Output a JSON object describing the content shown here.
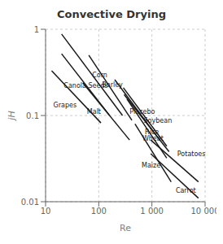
{
  "chart_data": {
    "type": "line",
    "title": "Convective Drying",
    "x_label": "Re",
    "y_label": "jH",
    "log": true,
    "grid": true,
    "color": "#1a1a1a",
    "xlim": [
      10,
      10000
    ],
    "ylim": [
      0.01,
      1
    ],
    "xticks": [
      10,
      100,
      {
        "value": 1000,
        "label": "1 000"
      },
      {
        "value": 10000,
        "label": "10 000"
      }
    ],
    "yticks": [
      0.01,
      0.1,
      1
    ],
    "series": [
      {
        "name": "Corn",
        "x": [
          20,
          280
        ],
        "values": [
          0.88,
          0.1
        ],
        "label_x": 75,
        "label_y": 0.28
      },
      {
        "name": "Canola Seeds",
        "x": [
          20,
          160
        ],
        "values": [
          0.52,
          0.1
        ],
        "label_x": 22,
        "label_y": 0.21
      },
      {
        "name": "Barley",
        "x": [
          65,
          420
        ],
        "values": [
          0.5,
          0.088
        ],
        "label_x": 115,
        "label_y": 0.215
      },
      {
        "name": "Grapes",
        "x": [
          13,
          110
        ],
        "values": [
          0.33,
          0.082
        ],
        "label_x": 14,
        "label_y": 0.125
      },
      {
        "name": "Malt",
        "x": [
          50,
          380
        ],
        "values": [
          0.24,
          0.052
        ],
        "label_x": 60,
        "label_y": 0.105
      },
      {
        "name": "Placebo",
        "x": [
          200,
          1400
        ],
        "values": [
          0.26,
          0.052
        ],
        "label_x": 380,
        "label_y": 0.105
      },
      {
        "name": "Soybean",
        "x": [
          290,
          1900
        ],
        "values": [
          0.21,
          0.044
        ],
        "label_x": 700,
        "label_y": 0.082
      },
      {
        "name": "Rice",
        "x": [
          300,
          2100
        ],
        "values": [
          0.175,
          0.038
        ],
        "label_x": 740,
        "label_y": 0.061
      },
      {
        "name": "Wheat",
        "x": [
          340,
          1900
        ],
        "values": [
          0.155,
          0.032
        ],
        "label_x": 660,
        "label_y": 0.051
      },
      {
        "name": "Potatoes",
        "x": [
          950,
          7500
        ],
        "values": [
          0.052,
          0.017
        ],
        "label_x": 3000,
        "label_y": 0.034
      },
      {
        "name": "Maize",
        "x": [
          480,
          2300
        ],
        "values": [
          0.08,
          0.017
        ],
        "label_x": 640,
        "label_y": 0.025
      },
      {
        "name": "Carrot",
        "x": [
          950,
          7500
        ],
        "values": [
          0.036,
          0.011
        ],
        "label_x": 2800,
        "label_y": 0.0128
      }
    ]
  }
}
